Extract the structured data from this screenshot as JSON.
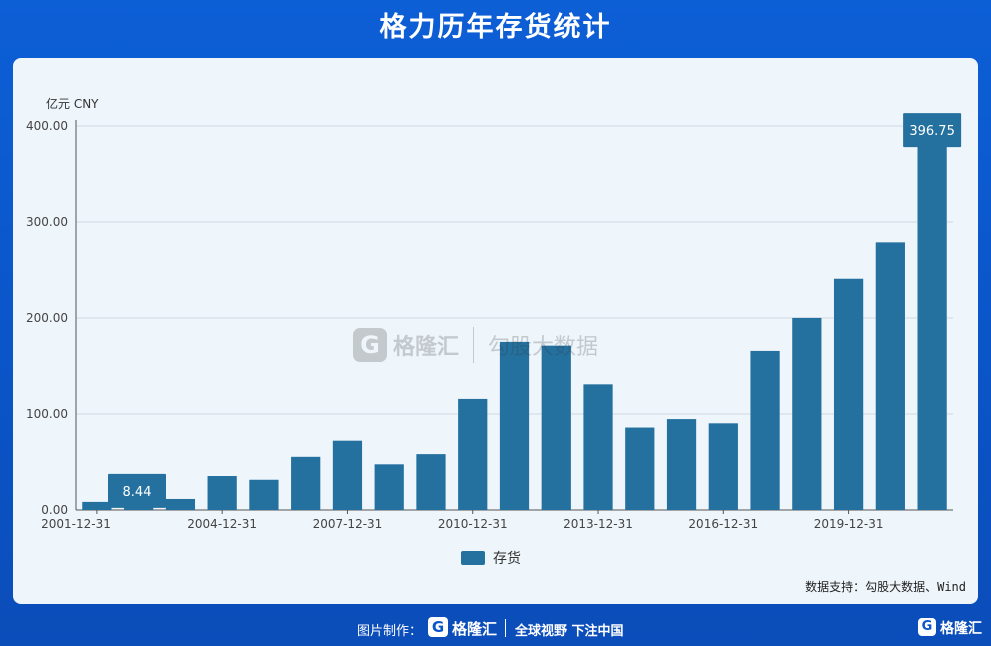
{
  "title": "格力历年存货统计",
  "chart_data": {
    "type": "bar",
    "unit_label": "亿元  CNY",
    "categories": [
      "2001-12-31",
      "2002-12-31",
      "2003-12-31",
      "2004-12-31",
      "2005-12-31",
      "2006-12-31",
      "2007-12-31",
      "2008-12-31",
      "2009-12-31",
      "2010-12-31",
      "2011-12-31",
      "2012-12-31",
      "2013-12-31",
      "2014-12-31",
      "2015-12-31",
      "2016-12-31",
      "2017-12-31",
      "2018-12-31",
      "2019-12-31",
      "2020-12-31",
      "2021-12-31"
    ],
    "x_tick_labels": [
      "2001-12-31",
      "2004-12-31",
      "2007-12-31",
      "2010-12-31",
      "2013-12-31",
      "2016-12-31",
      "2019-12-31"
    ],
    "series": [
      {
        "name": "存货",
        "values": [
          8.44,
          20.5,
          11.5,
          35.4,
          31.5,
          55.4,
          72.2,
          47.6,
          58.2,
          115.7,
          175.1,
          171.2,
          130.9,
          85.9,
          94.7,
          90.3,
          165.7,
          200.1,
          240.9,
          278.8,
          396.75
        ]
      }
    ],
    "ylim": [
      0,
      400
    ],
    "y_ticks": [
      "0.00",
      "100.00",
      "200.00",
      "300.00",
      "400.00"
    ],
    "annotations": [
      {
        "category": "2001-12-31",
        "label": "8.44"
      },
      {
        "category": "2021-12-31",
        "label": "396.75"
      }
    ],
    "legend_position": "bottom-center",
    "grid": true,
    "bar_color": "#2471a0"
  },
  "legend_label": "存货",
  "source": "数据支持：勾股大数据、Wind",
  "watermark": {
    "brand": "格隆汇",
    "brand2": "勾股大数据",
    "logo_letter": "G"
  },
  "footer": {
    "made_by": "图片制作：",
    "brand": "格隆汇",
    "slogan": "全球视野 下注中国",
    "logo_letter": "G"
  }
}
